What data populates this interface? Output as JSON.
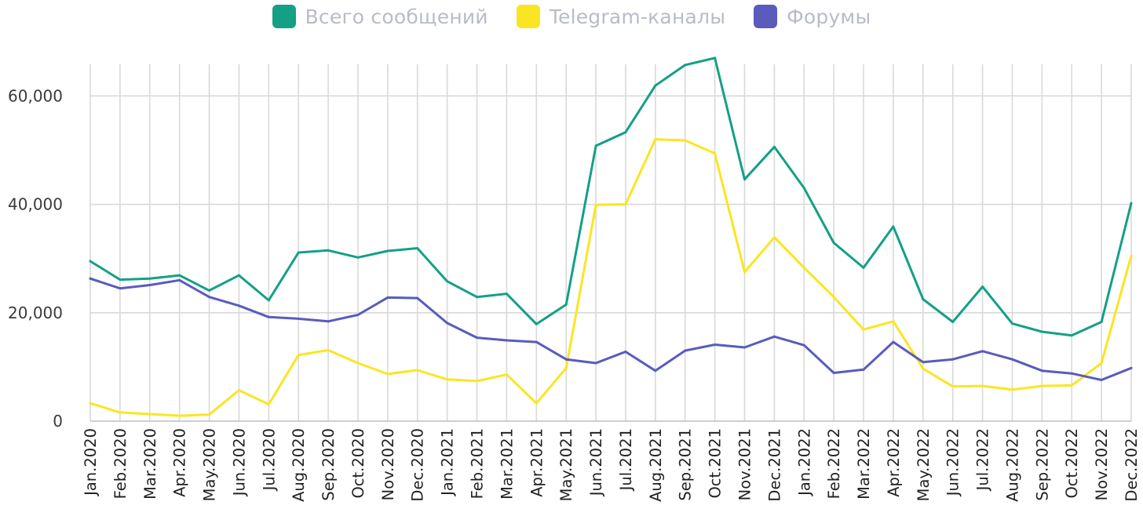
{
  "chart_data": {
    "type": "line",
    "title": "",
    "xlabel": "",
    "ylabel": "",
    "ylim": [
      0,
      68000
    ],
    "yticks": [
      0,
      20000,
      40000,
      60000
    ],
    "ytick_labels": [
      "0",
      "20,000",
      "40,000",
      "60,000"
    ],
    "grid": true,
    "legend_position": "top-center",
    "categories": [
      "Jan.2020",
      "Feb.2020",
      "Mar.2020",
      "Apr.2020",
      "May.2020",
      "Jun.2020",
      "Jul.2020",
      "Aug.2020",
      "Sep.2020",
      "Oct.2020",
      "Nov.2020",
      "Dec.2020",
      "Jan.2021",
      "Feb.2021",
      "Mar.2021",
      "Apr.2021",
      "May.2021",
      "Jun.2021",
      "Jul.2021",
      "Aug.2021",
      "Sep.2021",
      "Oct.2021",
      "Nov.2021",
      "Dec.2021",
      "Jan.2022",
      "Feb.2022",
      "Mar.2022",
      "Apr.2022",
      "May.2022",
      "Jun.2022",
      "Jul.2022",
      "Aug.2022",
      "Sep.2022",
      "Oct.2022",
      "Nov.2022",
      "Dec.2022"
    ],
    "series": [
      {
        "name": "Всего сообщений",
        "color": "#14a085",
        "values": [
          29500,
          26100,
          26300,
          26900,
          24100,
          26900,
          22300,
          31100,
          31500,
          30200,
          31400,
          31900,
          25800,
          22900,
          23500,
          17900,
          21500,
          50800,
          53300,
          61900,
          65700,
          67000,
          44600,
          50600,
          43000,
          32900,
          28300,
          35900,
          22500,
          18300,
          24800,
          18000,
          16500,
          15800,
          18300,
          40200
        ]
      },
      {
        "name": "Telegram-каналы",
        "color": "#fbe523",
        "values": [
          3300,
          1600,
          1300,
          1000,
          1200,
          5700,
          3100,
          12200,
          13100,
          10700,
          8700,
          9400,
          7700,
          7400,
          8600,
          3300,
          9800,
          39900,
          40000,
          52000,
          51800,
          49400,
          27500,
          33900,
          28300,
          22900,
          16900,
          18400,
          9700,
          6400,
          6500,
          5800,
          6500,
          6600,
          10700,
          30500
        ]
      },
      {
        "name": "Форумы",
        "color": "#5a5bbd",
        "values": [
          26300,
          24500,
          25100,
          26000,
          22900,
          21300,
          19200,
          18900,
          18400,
          19600,
          22800,
          22700,
          18100,
          15400,
          14900,
          14600,
          11400,
          10700,
          12800,
          9300,
          13000,
          14100,
          13600,
          15600,
          14000,
          8900,
          9500,
          14600,
          10900,
          11400,
          12900,
          11400,
          9300,
          8800,
          7600,
          9800
        ]
      }
    ]
  }
}
